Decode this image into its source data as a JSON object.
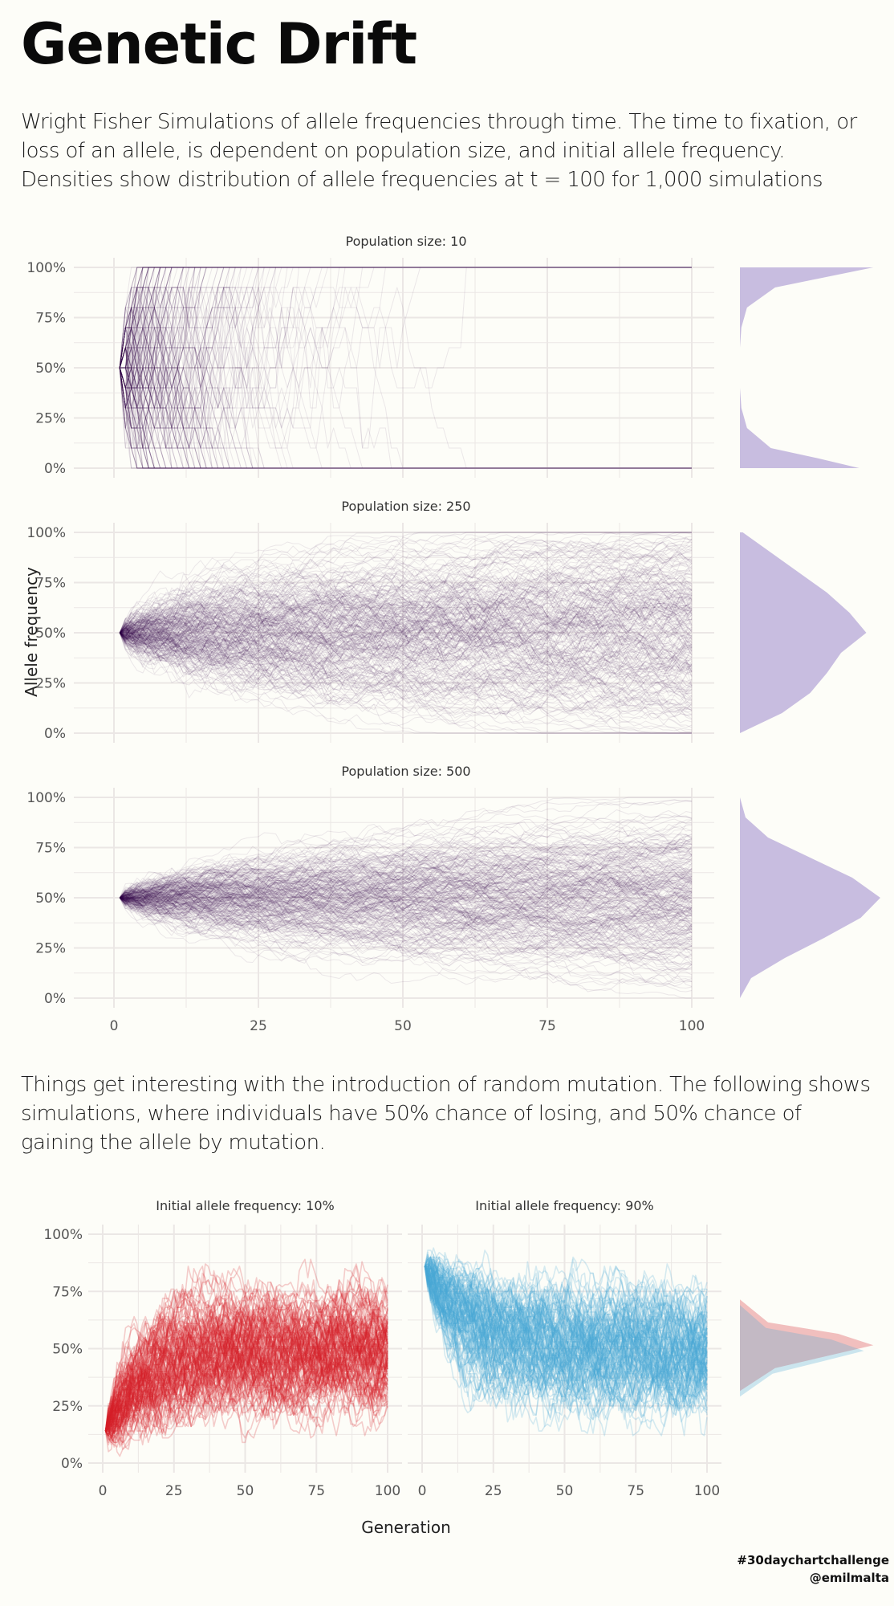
{
  "title": "Genetic Drift",
  "intro": "Wright Fisher Simulations of allele frequencies through time. The time to fixation, or loss of an allele, is dependent on population size, and initial allele frequency. Densities show distribution of allele frequencies at t = 100 for 1,000 simulations",
  "mutation_text": "Things get interesting with the introduction of random mutation. The following shows simulations, where individuals have 50% chance of losing, and 50% chance of gaining the allele by mutation.",
  "credits": {
    "line1": "#30daychartchallenge",
    "line2": "@emilmalta"
  },
  "colors": {
    "drift": "#3b0f4e",
    "density": "#c8bde0",
    "red": "#d42027",
    "blue": "#4ba9d4",
    "grid": "#ebe7e5"
  },
  "chart_data": [
    {
      "type": "line",
      "description_panels": "facet",
      "ylabel": "Allele frequency",
      "x_ticks": [
        "0",
        "25",
        "50",
        "75",
        "100"
      ],
      "y_ticks": [
        "0%",
        "25%",
        "50%",
        "75%",
        "100%"
      ],
      "xlim": [
        0,
        100
      ],
      "ylim": [
        0,
        1
      ],
      "initial_frequency": 0.5,
      "panels": [
        {
          "label": "Population size: 10",
          "population": 10,
          "density_at_t100": {
            "y": [
              0,
              0.05,
              0.1,
              0.2,
              0.3,
              0.4,
              0.5,
              0.6,
              0.7,
              0.8,
              0.9,
              0.95,
              1
            ],
            "d": [
              0.85,
              0.55,
              0.22,
              0.05,
              0.01,
              0.0,
              0.0,
              0.0,
              0.01,
              0.05,
              0.25,
              0.6,
              0.95
            ]
          }
        },
        {
          "label": "Population size: 250",
          "population": 250,
          "density_at_t100": {
            "y": [
              0,
              0.1,
              0.2,
              0.3,
              0.4,
              0.5,
              0.6,
              0.7,
              0.8,
              0.9,
              1
            ],
            "d": [
              0.0,
              0.3,
              0.5,
              0.62,
              0.72,
              0.9,
              0.78,
              0.62,
              0.42,
              0.22,
              0.02
            ]
          }
        },
        {
          "label": "Population size: 500",
          "population": 500,
          "density_at_t100": {
            "y": [
              0,
              0.1,
              0.2,
              0.3,
              0.4,
              0.5,
              0.6,
              0.7,
              0.8,
              0.9,
              1
            ],
            "d": [
              0.0,
              0.08,
              0.32,
              0.6,
              0.86,
              1.0,
              0.8,
              0.5,
              0.2,
              0.04,
              0.0
            ]
          }
        }
      ]
    },
    {
      "type": "line",
      "xlabel": "Generation",
      "x_ticks": [
        "0",
        "25",
        "50",
        "75",
        "100"
      ],
      "y_ticks": [
        "0%",
        "25%",
        "50%",
        "75%",
        "100%"
      ],
      "xlim": [
        0,
        100
      ],
      "ylim": [
        0,
        1
      ],
      "panels": [
        {
          "label": "Initial allele frequency: 10%",
          "initial_frequency": 0.1,
          "equilibrium": 0.5,
          "color": "red"
        },
        {
          "label": "Initial allele frequency: 90%",
          "initial_frequency": 0.9,
          "equilibrium": 0.5,
          "color": "blue"
        }
      ],
      "density_at_t100": {
        "y": [
          0.3,
          0.4,
          0.45,
          0.5,
          0.55,
          0.6,
          0.7
        ],
        "d": [
          0.0,
          0.25,
          0.6,
          0.95,
          0.7,
          0.2,
          0.0
        ]
      }
    }
  ]
}
